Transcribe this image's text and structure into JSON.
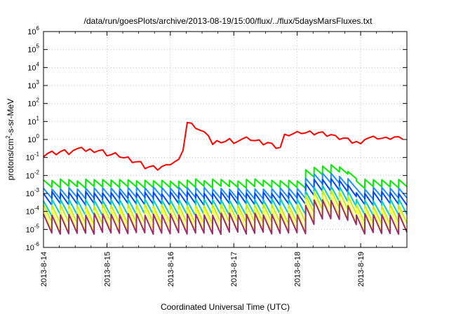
{
  "chart_data": {
    "type": "line",
    "title": "/data/run/goesPlots/archive/2013-08-19/15:00/flux/../flux/5daysMarsFluxes.txt",
    "xlabel": "Coordinated Universal Time (UTC)",
    "ylabel": "protons/cm²-s-sr-MeV",
    "yscale": "log",
    "ylim": [
      1e-06,
      1000000.0
    ],
    "xlim": [
      "2013-08-14 00:00",
      "2013-08-19 17:30"
    ],
    "x_ticks": [
      "2013-8-14",
      "2013-8-15",
      "2013-8-16",
      "2013-8-17",
      "2013-8-18",
      "2013-8-19"
    ],
    "y_ticks": [
      {
        "mant": "10",
        "exp": "-6"
      },
      {
        "mant": "10",
        "exp": "-5"
      },
      {
        "mant": "10",
        "exp": "-4"
      },
      {
        "mant": "10",
        "exp": "-3"
      },
      {
        "mant": "10",
        "exp": "-2"
      },
      {
        "mant": "10",
        "exp": "-1"
      },
      {
        "mant": "10",
        "exp": "0"
      },
      {
        "mant": "10",
        "exp": "1"
      },
      {
        "mant": "10",
        "exp": "2"
      },
      {
        "mant": "10",
        "exp": "3"
      },
      {
        "mant": "10",
        "exp": "4"
      },
      {
        "mant": "10",
        "exp": "5"
      },
      {
        "mant": "10",
        "exp": "6"
      }
    ],
    "grid": true,
    "legend": "none",
    "series": [
      {
        "color": "#ff0000",
        "kind": "red_trend"
      },
      {
        "color": "#00ee00",
        "kind": "saw",
        "start": 0.0055,
        "period_h": 3.2,
        "decay_dex": 0.4,
        "seed": 1
      },
      {
        "color": "#1e90ff",
        "kind": "saw",
        "start": 0.002,
        "period_h": 3.2,
        "decay_dex": 0.55,
        "seed": 2
      },
      {
        "color": "#0047ff",
        "kind": "saw",
        "start": 0.0011,
        "period_h": 3.2,
        "decay_dex": 0.65,
        "seed": 3
      },
      {
        "color": "#00d0c0",
        "kind": "saw",
        "start": 0.00045,
        "period_h": 3.2,
        "decay_dex": 0.85,
        "seed": 4
      },
      {
        "color": "#c8f000",
        "kind": "saw",
        "start": 0.00022,
        "period_h": 3.2,
        "decay_dex": 1.0,
        "seed": 5
      },
      {
        "color": "#ffff40",
        "kind": "saw",
        "start": 0.00013,
        "period_h": 3.2,
        "decay_dex": 1.2,
        "seed": 6
      },
      {
        "color": "#9b2d6e",
        "kind": "saw",
        "start": 7e-05,
        "period_h": 3.2,
        "decay_dex": 1.05,
        "seed": 7
      }
    ]
  }
}
